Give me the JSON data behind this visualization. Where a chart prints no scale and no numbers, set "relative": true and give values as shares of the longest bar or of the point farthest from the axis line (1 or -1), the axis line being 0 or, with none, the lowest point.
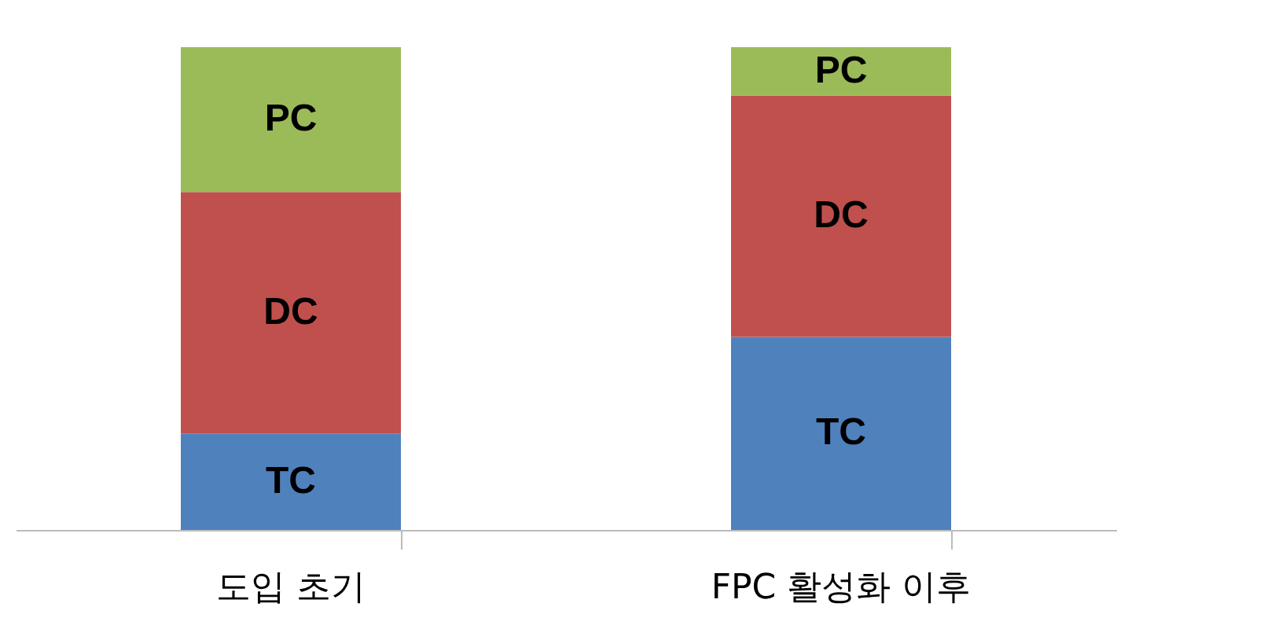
{
  "chart_data": {
    "type": "bar",
    "stacked": true,
    "relative": true,
    "legend": false,
    "categories": [
      "도입 초기",
      "FPC 활성화 이후"
    ],
    "series": [
      {
        "name": "TC",
        "color": "#4f81bd",
        "values": [
          0.2,
          0.4
        ]
      },
      {
        "name": "DC",
        "color": "#c0504d",
        "values": [
          0.5,
          0.5
        ]
      },
      {
        "name": "PC",
        "color": "#9bbb59",
        "values": [
          0.3,
          0.1
        ]
      }
    ]
  }
}
